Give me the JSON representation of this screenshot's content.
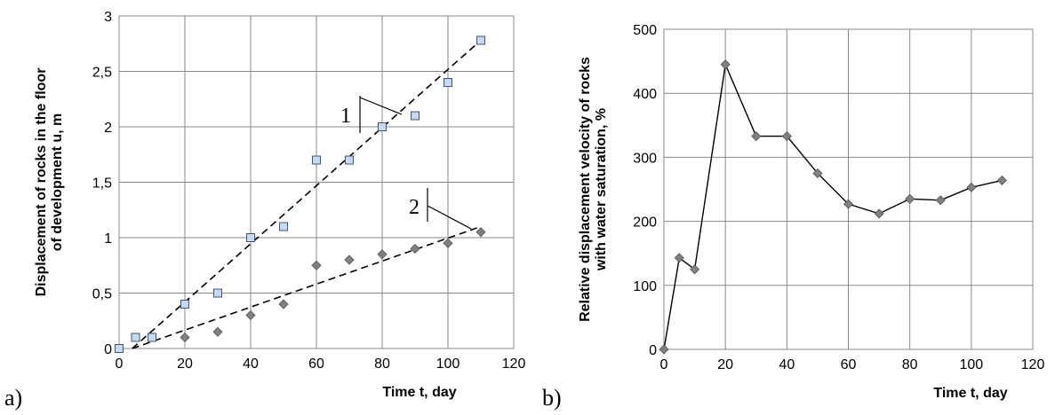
{
  "chart_data": [
    {
      "type": "scatter",
      "panel_label": "a)",
      "xlabel": "Time t, day",
      "ylabel_line1": "Displacement of rocks in the floor",
      "ylabel_line2": "of development  u, m",
      "xlim": [
        0,
        120
      ],
      "ylim": [
        0,
        3
      ],
      "x_ticks": [
        "0",
        "20",
        "40",
        "60",
        "80",
        "100",
        "120"
      ],
      "y_ticks": [
        "0",
        "0,5",
        "1",
        "1,5",
        "2",
        "2,5",
        "3"
      ],
      "grid": true,
      "series": [
        {
          "label": "1",
          "marker": "square",
          "color": "#c6d9f0",
          "x": [
            0,
            5,
            10,
            20,
            30,
            40,
            50,
            60,
            70,
            80,
            90,
            100,
            110
          ],
          "y": [
            0,
            0.1,
            0.1,
            0.4,
            0.5,
            1.0,
            1.1,
            1.7,
            1.7,
            2.0,
            2.1,
            2.4,
            2.78
          ],
          "trend": {
            "x": [
              4,
              110
            ],
            "y": [
              0,
              2.78
            ]
          }
        },
        {
          "label": "2",
          "marker": "diamond",
          "color": "#808080",
          "x": [
            20,
            30,
            40,
            50,
            60,
            70,
            80,
            90,
            100,
            110
          ],
          "y": [
            0.1,
            0.15,
            0.3,
            0.4,
            0.75,
            0.8,
            0.85,
            0.9,
            0.95,
            1.05
          ],
          "trend": {
            "x": [
              4,
              110
            ],
            "y": [
              0,
              1.1
            ]
          }
        }
      ]
    },
    {
      "type": "line",
      "panel_label": "b)",
      "xlabel": "Time t, day",
      "ylabel_line1": "Relative displacement velocity of rocks",
      "ylabel_line2": "with water saturation, %",
      "xlim": [
        0,
        120
      ],
      "ylim": [
        0,
        500
      ],
      "x_ticks": [
        "0",
        "20",
        "40",
        "60",
        "80",
        "100",
        "120"
      ],
      "y_ticks": [
        "0",
        "100",
        "200",
        "300",
        "400",
        "500"
      ],
      "grid": true,
      "series": [
        {
          "marker": "diamond",
          "color": "#808080",
          "x": [
            0,
            5,
            10,
            20,
            30,
            40,
            50,
            60,
            70,
            80,
            90,
            100,
            110
          ],
          "y": [
            0,
            143,
            125,
            445,
            333,
            333,
            275,
            227,
            212,
            235,
            233,
            253,
            264
          ]
        }
      ]
    }
  ]
}
